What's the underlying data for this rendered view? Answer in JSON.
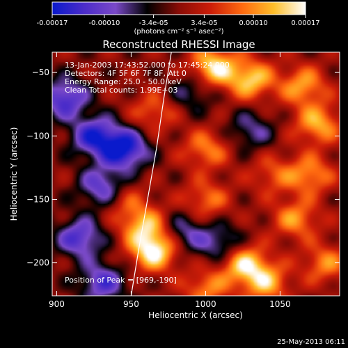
{
  "colorbar": {
    "tick_labels": [
      "-0.00017",
      "-0.00010",
      "-3.4e-05",
      "3.4e-05",
      "0.00010",
      "0.00017"
    ],
    "tick_values": [
      -0.00017,
      -0.0001,
      -3.4e-05,
      3.4e-05,
      0.0001,
      0.00017
    ],
    "range": [
      -0.00017,
      0.00017
    ],
    "units_text": "(photons cm⁻² s⁻¹ asec⁻²)",
    "colors": [
      "#0a1acc",
      "#4b2cc9",
      "#7a49c8",
      "#000000",
      "#8a0c06",
      "#cc1d08",
      "#ff6a10",
      "#ffbf2a",
      "#ffffff"
    ]
  },
  "chart_data": {
    "type": "heatmap",
    "title": "Reconstructed RHESSI Image",
    "xlabel": "Heliocentric X (arcsec)",
    "ylabel": "Heliocentric Y (arcsec)",
    "xlim": [
      897,
      1090
    ],
    "ylim": [
      -226,
      -34
    ],
    "xticks": [
      900,
      950,
      1000,
      1050
    ],
    "yticks": [
      -50,
      -100,
      -150,
      -200
    ],
    "xtick_labels": [
      "900",
      "950",
      "1000",
      "1050"
    ],
    "ytick_labels": [
      "−50",
      "−100",
      "−150",
      "−200"
    ],
    "info_lines": [
      "13-Jan-2003 17:43:52.000 to 17:45:24.000",
      "Detectors: 4F 5F 6F 7F 8F, Att 0",
      "Energy Range: 25.0 - 50.0 keV",
      "Clean    Total counts: 1.99E+03"
    ],
    "peak_text": "Position of Peak = [969,-190]",
    "peak": [
      969,
      -190
    ],
    "limb_points": [
      [
        950,
        -226
      ],
      [
        955,
        -190
      ],
      [
        961,
        -150
      ],
      [
        967,
        -110
      ],
      [
        972,
        -70
      ],
      [
        977,
        -34
      ]
    ],
    "sources": [
      {
        "x": 965,
        "y": -190,
        "v": 1.0
      },
      {
        "x": 958,
        "y": -170,
        "v": 0.7
      },
      {
        "x": 1025,
        "y": -200,
        "v": 0.85
      },
      {
        "x": 1040,
        "y": -215,
        "v": 0.7
      },
      {
        "x": 1000,
        "y": -220,
        "v": 0.55
      },
      {
        "x": 1005,
        "y": -45,
        "v": 0.9
      },
      {
        "x": 1030,
        "y": -55,
        "v": 0.8
      },
      {
        "x": 1065,
        "y": -60,
        "v": 0.65
      },
      {
        "x": 1075,
        "y": -90,
        "v": 0.7
      },
      {
        "x": 1070,
        "y": -130,
        "v": 0.6
      },
      {
        "x": 1060,
        "y": -165,
        "v": 0.6
      },
      {
        "x": 1080,
        "y": -200,
        "v": 0.55
      },
      {
        "x": 1000,
        "y": -110,
        "v": 0.55
      },
      {
        "x": 1000,
        "y": -150,
        "v": 0.5
      },
      {
        "x": 965,
        "y": -80,
        "v": 0.45
      },
      {
        "x": 945,
        "y": -150,
        "v": 0.35
      },
      {
        "x": 1045,
        "y": -130,
        "v": 0.4
      },
      {
        "x": 905,
        "y": -70,
        "v": -0.8
      },
      {
        "x": 925,
        "y": -100,
        "v": -0.85
      },
      {
        "x": 945,
        "y": -110,
        "v": -1.0
      },
      {
        "x": 930,
        "y": -140,
        "v": -0.7
      },
      {
        "x": 915,
        "y": -180,
        "v": -0.75
      },
      {
        "x": 930,
        "y": -215,
        "v": -0.7
      },
      {
        "x": 985,
        "y": -175,
        "v": -0.5
      },
      {
        "x": 1010,
        "y": -185,
        "v": -0.55
      },
      {
        "x": 1030,
        "y": -95,
        "v": -0.45
      },
      {
        "x": 990,
        "y": -65,
        "v": -0.4
      }
    ]
  },
  "footer": {
    "timestamp": "25-May-2013 06:11"
  }
}
